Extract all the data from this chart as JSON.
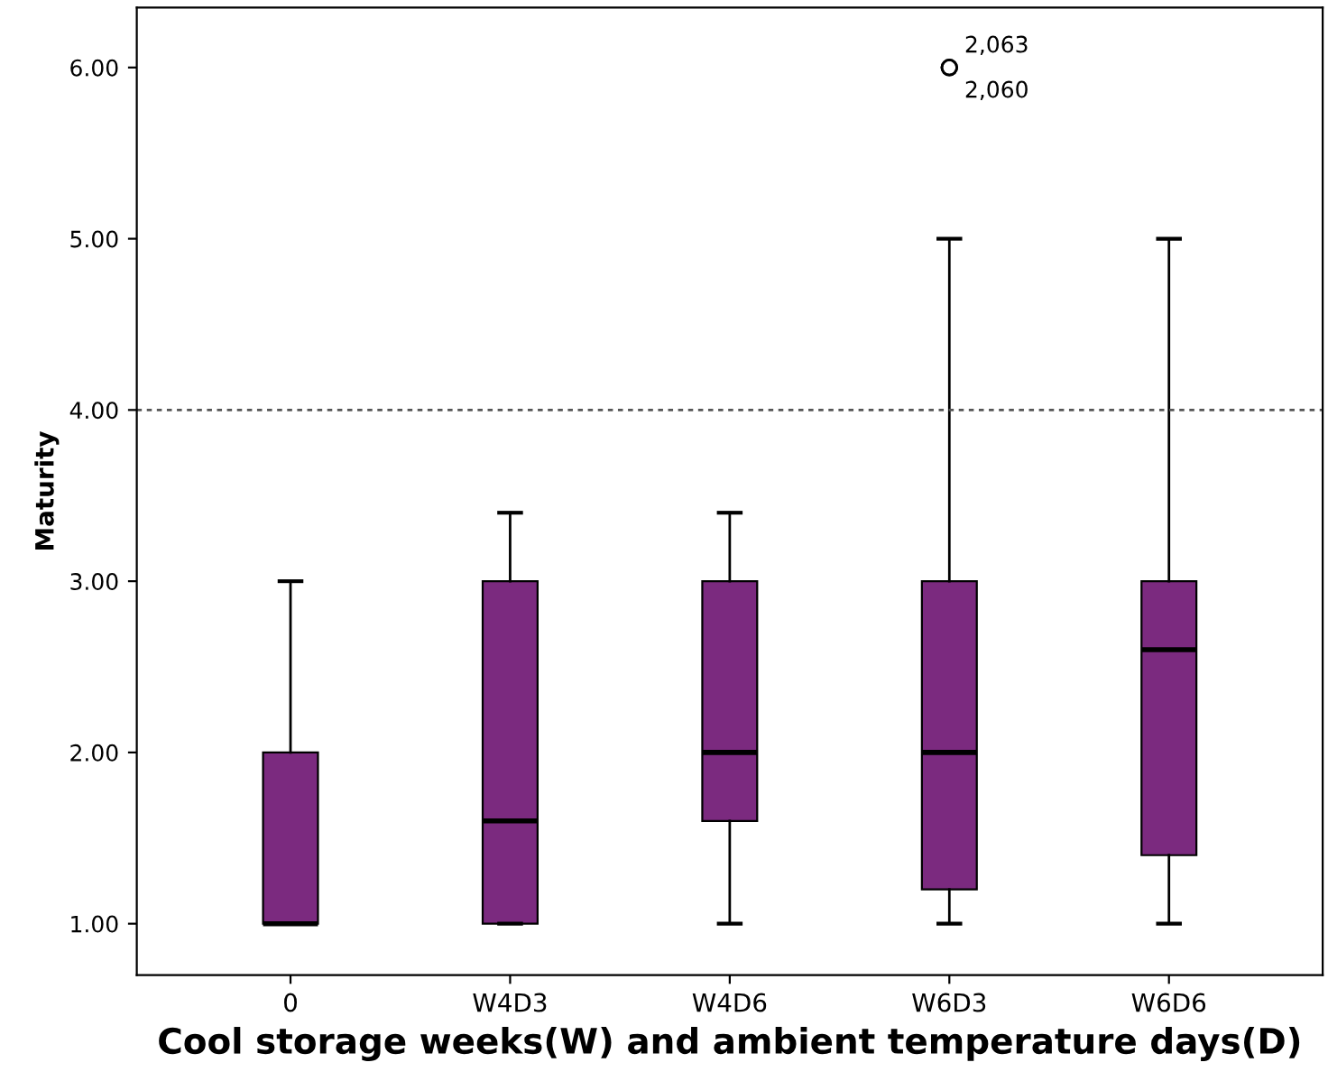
{
  "chart_data": {
    "type": "box",
    "xlabel": "Cool storage weeks(W) and ambient temperature days(D)",
    "ylabel": "Maturity",
    "categories": [
      "0",
      "W4D3",
      "W4D6",
      "W6D3",
      "W6D6"
    ],
    "boxes": [
      {
        "low": 1,
        "q1": 1,
        "median": 1,
        "q3": 2,
        "high": 3
      },
      {
        "low": 1,
        "q1": 1,
        "median": 1.6,
        "q3": 3,
        "high": 3.4
      },
      {
        "low": 1,
        "q1": 1.6,
        "median": 2,
        "q3": 3,
        "high": 3.4
      },
      {
        "low": 1,
        "q1": 1.2,
        "median": 2,
        "q3": 3,
        "high": 5,
        "outliers": [
          6,
          6
        ]
      },
      {
        "low": 1,
        "q1": 1.4,
        "median": 2.6,
        "q3": 3,
        "high": 5
      }
    ],
    "color": "#7b2a7f",
    "ylim": [
      0.7,
      6.35
    ],
    "yticks": [
      {
        "value": 1,
        "label": "1.00"
      },
      {
        "value": 2,
        "label": "2.00"
      },
      {
        "value": 3,
        "label": "3.00"
      },
      {
        "value": 4,
        "label": "4.00"
      },
      {
        "value": 5,
        "label": "5.00"
      },
      {
        "value": 6,
        "label": "6.00"
      }
    ],
    "ref_lines": [
      {
        "axis": "y",
        "value": 4,
        "line_style": "dotted",
        "color": "#555555"
      }
    ],
    "annotations": [
      "2,063",
      "2,060"
    ],
    "grid": false,
    "legend": false
  }
}
